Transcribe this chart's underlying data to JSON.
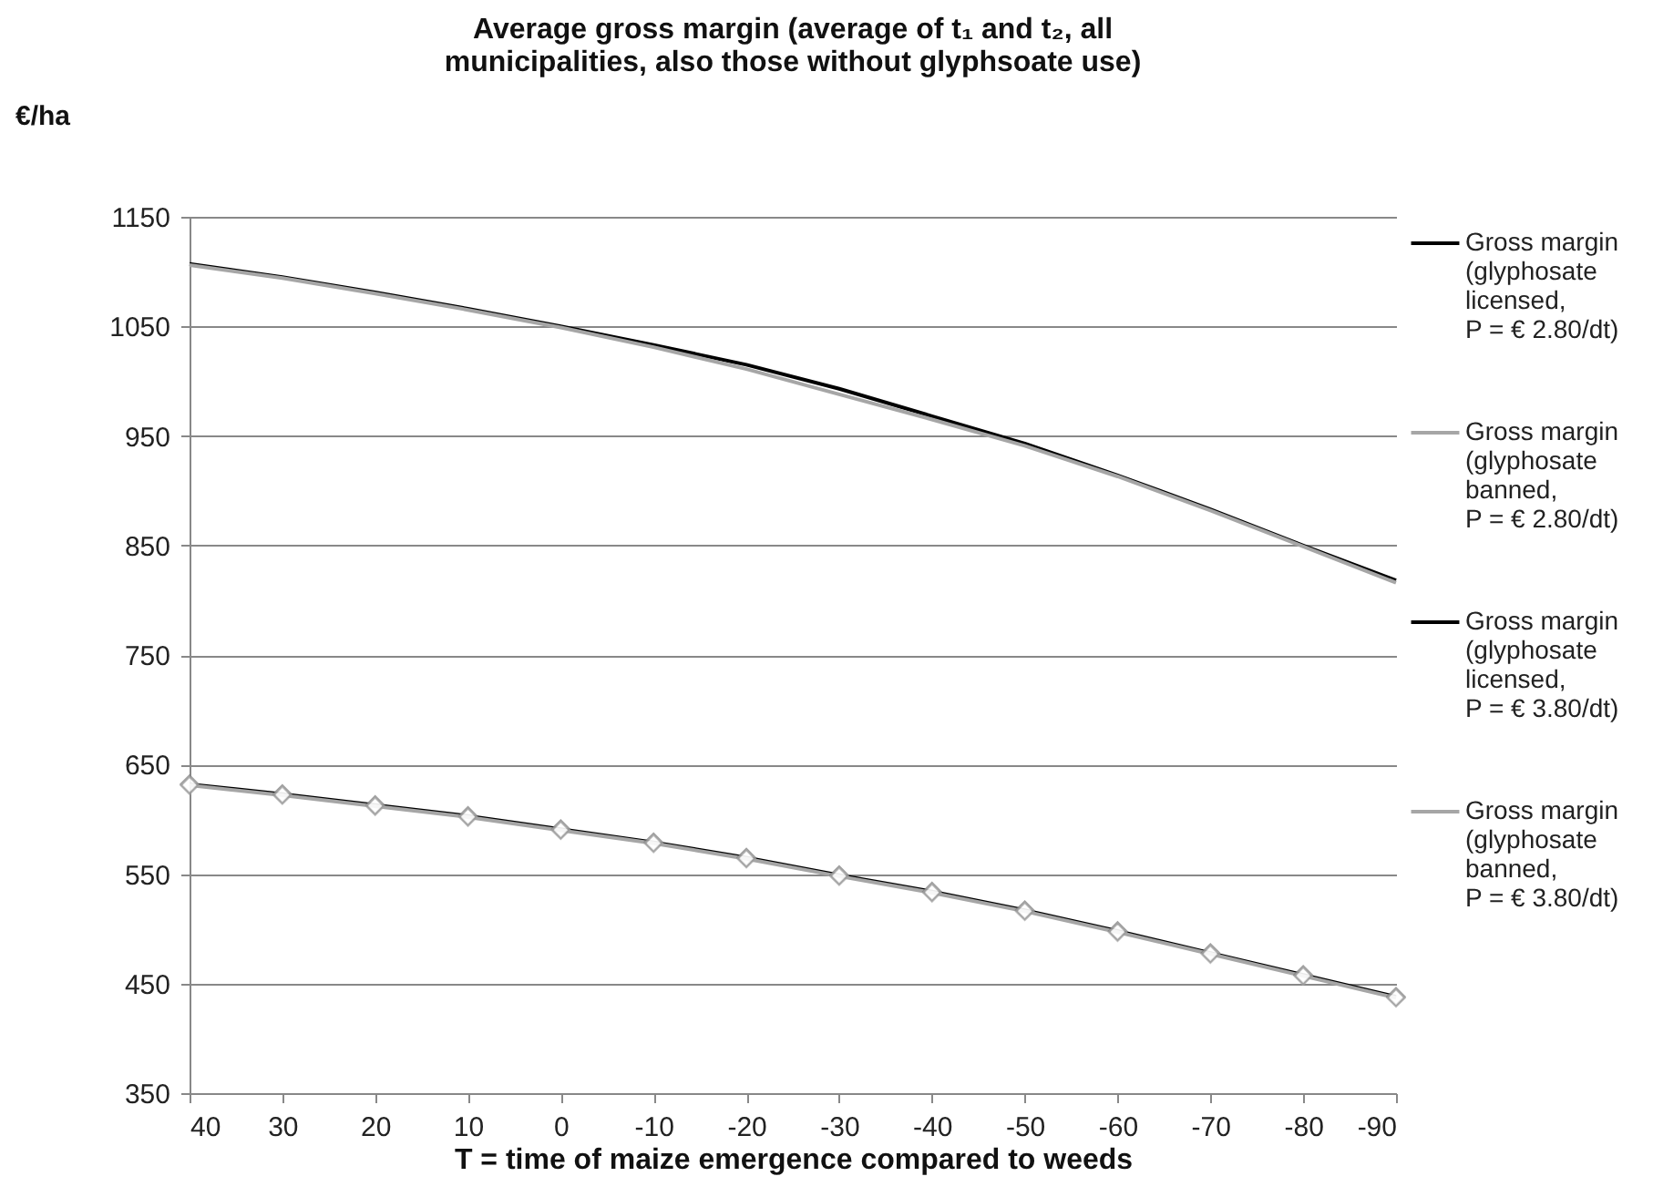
{
  "chart_data": {
    "type": "line",
    "title": "Average gross margin (average of t₁ and t₂, all municipalities, also those without glyphsoate use)",
    "xlabel": "T = time of maize emergence compared to weeds",
    "ylabel": "€/ha",
    "x": [
      40,
      30,
      20,
      10,
      0,
      -10,
      -20,
      -30,
      -40,
      -50,
      -60,
      -70,
      -80,
      -90
    ],
    "xlim": [
      40,
      -90
    ],
    "xticks": [
      40,
      30,
      20,
      10,
      0,
      -10,
      -20,
      -30,
      -40,
      -50,
      -60,
      -70,
      -80,
      -90
    ],
    "ylim": [
      350,
      1150
    ],
    "yticks": [
      350,
      450,
      550,
      650,
      750,
      850,
      950,
      1050,
      1150
    ],
    "grid": "y",
    "legend": "right",
    "series": [
      {
        "name": "Gross margin (glyphosate licensed, P = € 2.80/dt)",
        "color": "#000000",
        "marker": "diamond",
        "values": [
          632,
          623,
          613,
          603,
          591,
          579,
          565,
          549,
          534,
          517,
          498,
          478,
          458,
          438
        ]
      },
      {
        "name": "Gross margin (glyphosate banned, P = € 2.80/dt)",
        "color": "#a6a6a6",
        "marker": "diamond",
        "values": [
          631,
          622,
          612,
          602,
          590,
          578,
          564,
          548,
          533,
          516,
          497,
          477,
          457,
          437
        ]
      },
      {
        "name": "Gross margin (glyphosate licensed, P = € 3.80/dt)",
        "color": "#000000",
        "marker": "none",
        "values": [
          1107,
          1095,
          1081,
          1066,
          1050,
          1033,
          1015,
          993,
          968,
          943,
          914,
          883,
          850,
          818
        ]
      },
      {
        "name": "Gross margin (glyphosate banned, P = € 3.80/dt)",
        "color": "#a6a6a6",
        "marker": "none",
        "values": [
          1106,
          1094,
          1080,
          1065,
          1049,
          1031,
          1011,
          988,
          965,
          941,
          913,
          882,
          849,
          816
        ]
      }
    ]
  }
}
